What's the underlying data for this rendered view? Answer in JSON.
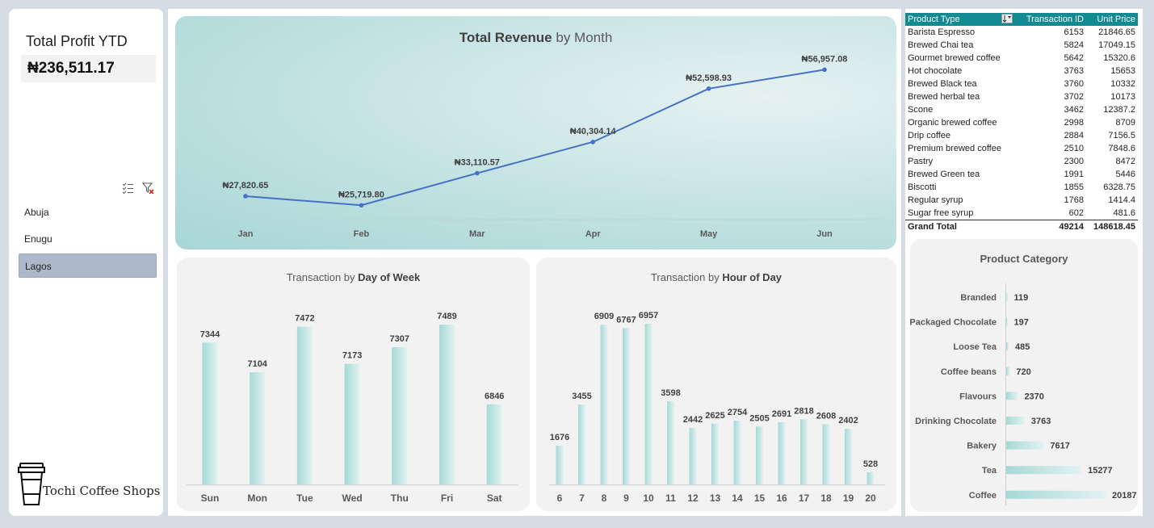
{
  "kpi": {
    "title": "Total Profit YTD",
    "value": "₦236,511.17"
  },
  "slicer": {
    "items": [
      "Abuja",
      "Enugu",
      "Lagos"
    ],
    "selected": "Lagos"
  },
  "brand": {
    "name": "Tochi Coffee Shops"
  },
  "colors": {
    "line": "#4472c4",
    "header": "#118a92",
    "bar_light": "#e2f2f2",
    "bar_dark": "#a6d9d6"
  },
  "revenue_chart": {
    "title_bold": "Total Revenue",
    "title_rest": " by Month"
  },
  "dow_chart": {
    "title_rest": "Transaction by ",
    "title_bold": "Day of Week"
  },
  "hour_chart": {
    "title_rest": "Transaction by ",
    "title_bold": "Hour of Day"
  },
  "category_chart": {
    "title": "Product Category"
  },
  "chart_data": [
    {
      "type": "line",
      "title": "Total Revenue by Month",
      "categories": [
        "Jan",
        "Feb",
        "Mar",
        "Apr",
        "May",
        "Jun"
      ],
      "values": [
        27820.65,
        25719.8,
        33110.57,
        40304.14,
        52598.93,
        56957.08
      ],
      "labels": [
        "₦27,820.65",
        "₦25,719.80",
        "₦33,110.57",
        "₦40,304.14",
        "₦52,598.93",
        "₦56,957.08"
      ],
      "ylim": [
        20000,
        60000
      ]
    },
    {
      "type": "bar",
      "title": "Transaction by Day of Week",
      "categories": [
        "Sun",
        "Mon",
        "Tue",
        "Wed",
        "Thu",
        "Fri",
        "Sat"
      ],
      "values": [
        7344,
        7104,
        7472,
        7173,
        7307,
        7489,
        6846
      ],
      "ylim": [
        6200,
        7600
      ]
    },
    {
      "type": "bar",
      "title": "Transaction by Hour of Day",
      "categories": [
        "6",
        "7",
        "8",
        "9",
        "10",
        "11",
        "12",
        "13",
        "14",
        "15",
        "16",
        "17",
        "18",
        "19",
        "20"
      ],
      "values": [
        1676,
        3455,
        6909,
        6767,
        6957,
        3598,
        2442,
        2625,
        2754,
        2505,
        2691,
        2818,
        2608,
        2402,
        528
      ],
      "ylim": [
        0,
        7300
      ]
    },
    {
      "type": "bar",
      "orientation": "horizontal",
      "title": "Product Category",
      "categories": [
        "Branded",
        "Packaged Chocolate",
        "Loose Tea",
        "Coffee beans",
        "Flavours",
        "Drinking Chocolate",
        "Bakery",
        "Tea",
        "Coffee"
      ],
      "values": [
        119,
        197,
        485,
        720,
        2370,
        3763,
        7617,
        15277,
        20187
      ],
      "xlim": [
        0,
        20187
      ]
    }
  ],
  "pivot": {
    "headers": [
      "Product Type",
      "Transaction ID",
      "Unit Price"
    ],
    "rows": [
      [
        "Barista Espresso",
        "6153",
        "21846.65"
      ],
      [
        "Brewed Chai tea",
        "5824",
        "17049.15"
      ],
      [
        "Gourmet brewed coffee",
        "5642",
        "15320.6"
      ],
      [
        "Hot chocolate",
        "3763",
        "15653"
      ],
      [
        "Brewed Black tea",
        "3760",
        "10332"
      ],
      [
        "Brewed herbal tea",
        "3702",
        "10173"
      ],
      [
        "Scone",
        "3462",
        "12387.2"
      ],
      [
        "Organic brewed coffee",
        "2998",
        "8709"
      ],
      [
        "Drip coffee",
        "2884",
        "7156.5"
      ],
      [
        "Premium brewed coffee",
        "2510",
        "7848.6"
      ],
      [
        "Pastry",
        "2300",
        "8472"
      ],
      [
        "Brewed Green tea",
        "1991",
        "5446"
      ],
      [
        "Biscotti",
        "1855",
        "6328.75"
      ],
      [
        "Regular syrup",
        "1768",
        "1414.4"
      ],
      [
        "Sugar free syrup",
        "602",
        "481.6"
      ]
    ],
    "total": [
      "Grand Total",
      "49214",
      "148618.45"
    ]
  }
}
